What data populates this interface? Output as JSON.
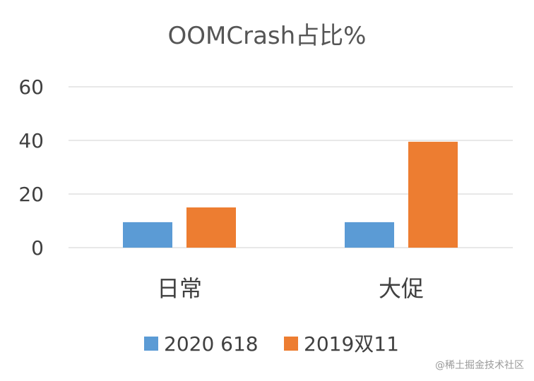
{
  "chart_data": {
    "type": "bar",
    "title": "OOMCrash占比%",
    "categories": [
      "日常",
      "大促"
    ],
    "series": [
      {
        "name": "2020 618",
        "color": "#5B9BD5",
        "values": [
          9.5,
          9.5
        ]
      },
      {
        "name": "2019双11",
        "color": "#ED7D31",
        "values": [
          15,
          39.5
        ]
      }
    ],
    "yticks": [
      "0",
      "20",
      "40",
      "60"
    ],
    "ylim": [
      0,
      60
    ],
    "grid": true,
    "legend_position": "bottom"
  },
  "watermark": "@稀土掘金技术社区"
}
